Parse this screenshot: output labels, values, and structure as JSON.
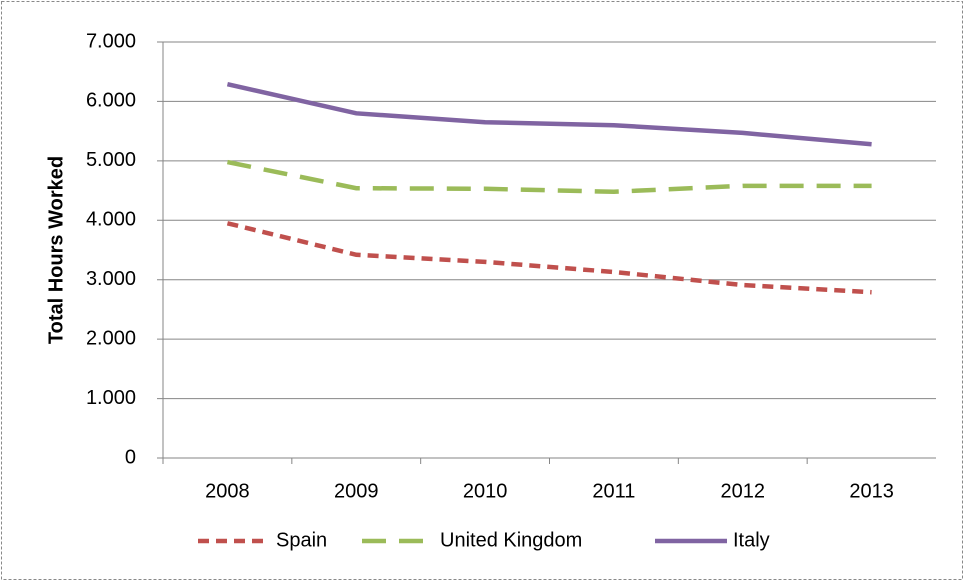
{
  "chart_data": {
    "type": "line",
    "y_label": "Total Hours Worked",
    "categories": [
      "2008",
      "2009",
      "2010",
      "2011",
      "2012",
      "2013"
    ],
    "series": [
      {
        "name": "Spain",
        "color": "#c0504d",
        "line_style": "dashed",
        "values": [
          3950,
          3420,
          3300,
          3130,
          2910,
          2790
        ]
      },
      {
        "name": "United Kingdom",
        "color": "#9bbb59",
        "line_style": "long-dashed",
        "values": [
          4980,
          4540,
          4530,
          4480,
          4580,
          4580
        ]
      },
      {
        "name": "Italy",
        "color": "#8064a2",
        "line_style": "solid",
        "values": [
          6290,
          5800,
          5650,
          5600,
          5470,
          5280
        ]
      }
    ],
    "ylim": [
      0,
      7000
    ],
    "yticks": [
      0,
      {
        "value": 1000,
        "label": "1.000"
      },
      {
        "value": 2000,
        "label": "2.000"
      },
      {
        "value": 3000,
        "label": "3.000"
      },
      {
        "value": 4000,
        "label": "4.000"
      },
      {
        "value": 5000,
        "label": "5.000"
      },
      {
        "value": 6000,
        "label": "6.000"
      },
      {
        "value": 7000,
        "label": "7.000"
      }
    ],
    "grid": true,
    "legend": "bottom"
  }
}
